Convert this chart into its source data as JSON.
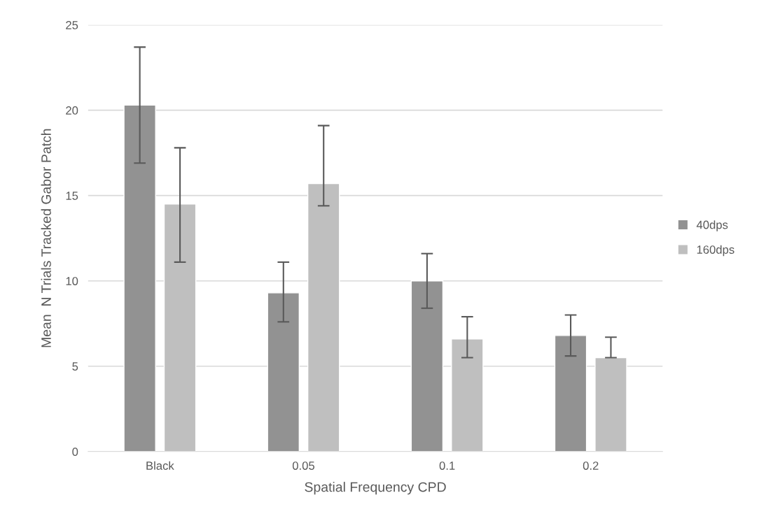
{
  "chart_data": {
    "type": "bar",
    "xlabel": "Spatial Frequency CPD",
    "ylabel": "Mean  N Trials Tracked Gabor Patch",
    "categories": [
      "Black",
      "0.05",
      "0.1",
      "0.2"
    ],
    "series": [
      {
        "name": "40dps",
        "color": "#929292",
        "values": [
          20.3,
          9.3,
          10.0,
          6.8
        ],
        "errors": [
          [
            16.9,
            23.7
          ],
          [
            7.6,
            11.1
          ],
          [
            8.4,
            11.6
          ],
          [
            5.6,
            8.0
          ]
        ]
      },
      {
        "name": "160dps",
        "color": "#bfbfbf",
        "values": [
          14.5,
          15.7,
          6.6,
          5.5
        ],
        "errors": [
          [
            11.1,
            17.8
          ],
          [
            14.4,
            19.1
          ],
          [
            5.5,
            7.9
          ],
          [
            5.5,
            6.7
          ]
        ]
      }
    ],
    "ylim": [
      0,
      25
    ],
    "yticks": [
      0,
      5,
      10,
      15,
      20,
      25
    ],
    "grid": "y",
    "legend": "right"
  }
}
